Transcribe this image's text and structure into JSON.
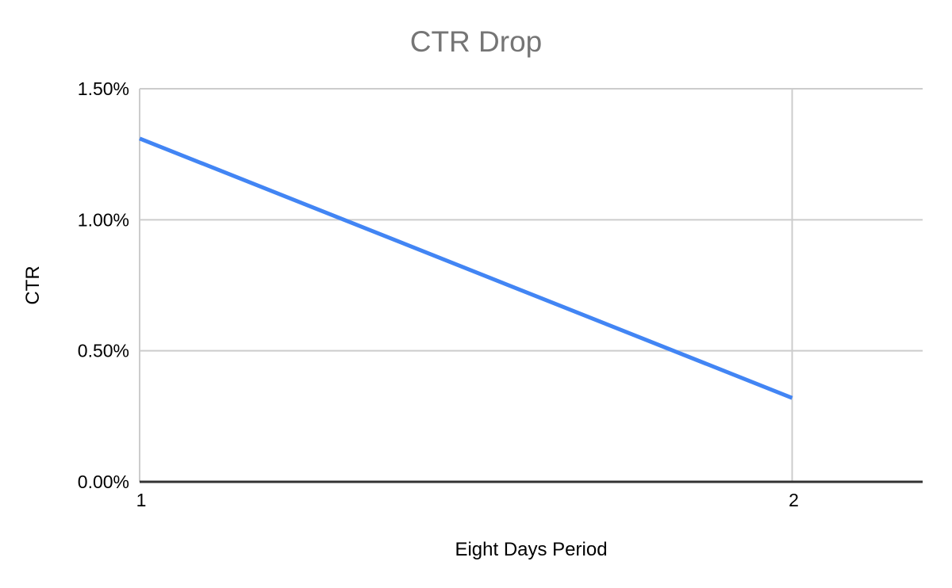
{
  "chart": {
    "title": "CTR Drop",
    "x_axis_title": "Eight Days Period",
    "y_axis_title": "CTR"
  },
  "chart_data": {
    "type": "line",
    "title": "CTR Drop",
    "xlabel": "Eight Days Period",
    "ylabel": "CTR",
    "x": [
      1,
      2
    ],
    "series": [
      {
        "name": "CTR",
        "values_percent": [
          1.31,
          0.32
        ]
      }
    ],
    "x_ticks": [
      {
        "label": "1",
        "value": 1
      },
      {
        "label": "2",
        "value": 2
      }
    ],
    "y_ticks": [
      {
        "label": "0.00%",
        "value": 0
      },
      {
        "label": "0.50%",
        "value": 0.5
      },
      {
        "label": "1.00%",
        "value": 1.0
      },
      {
        "label": "1.50%",
        "value": 1.5
      }
    ],
    "ylim": [
      0,
      1.5
    ],
    "xlim": [
      1,
      2.2
    ],
    "grid": true,
    "legend": "none",
    "colors": {
      "series_line": "#4285f4",
      "gridline": "#cccccc",
      "axis_baseline": "#333333",
      "title_text": "#757575",
      "axis_text": "#000000",
      "background": "#ffffff"
    }
  }
}
